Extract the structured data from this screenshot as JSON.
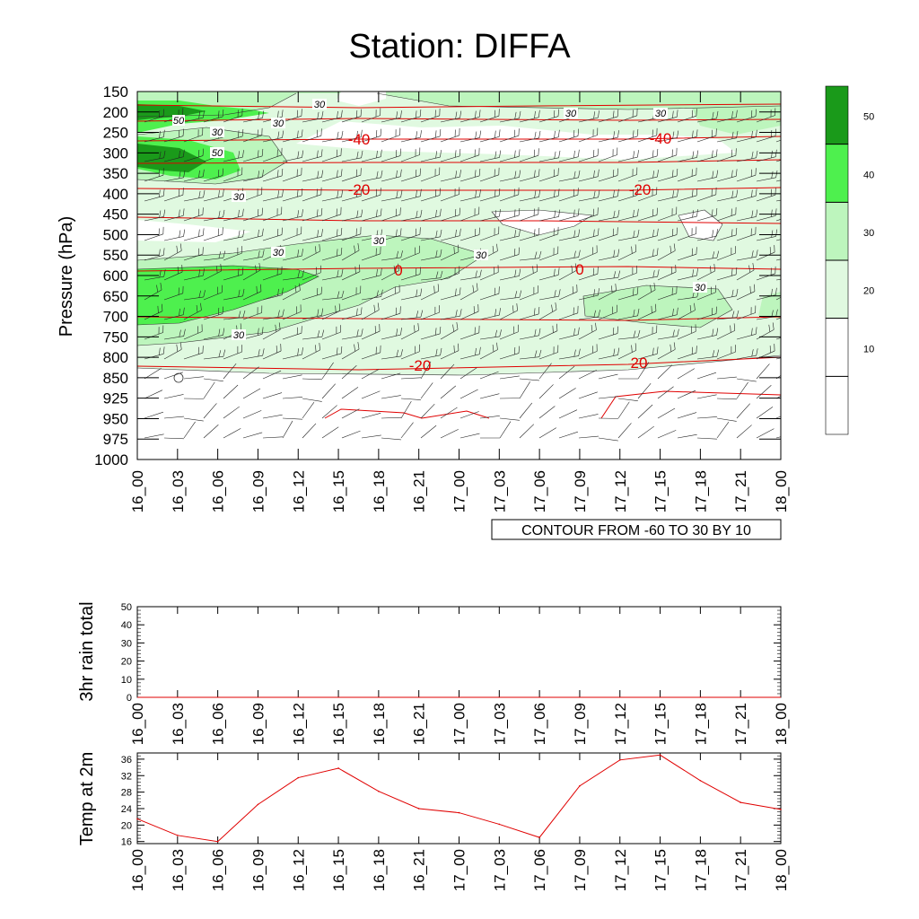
{
  "title": "Station: DIFFA",
  "cross_section": {
    "ylabel": "Pressure (hPa)",
    "note": "CONTOUR FROM -60 TO 30 BY 10",
    "temp_labels": [
      "-40",
      "-40",
      "-20",
      "-20",
      "0",
      "0",
      "-20",
      "20"
    ],
    "rh_labels": [
      "50",
      "30",
      "30",
      "50",
      "30",
      "30",
      "30",
      "30",
      "30",
      "30",
      "30",
      "30",
      "30"
    ],
    "colorbar_labels": [
      "50",
      "40",
      "30",
      "20",
      "10"
    ],
    "colorbar_colors": [
      "#1a9a1a",
      "#4ef04e",
      "#bdf5bd",
      "#e0f9e0",
      "#ffffff",
      "#ffffff"
    ]
  },
  "chart_data": [
    {
      "type": "heatmap",
      "title": "Station: DIFFA",
      "ylabel": "Pressure (hPa)",
      "x": [
        "16_00",
        "16_03",
        "16_06",
        "16_09",
        "16_12",
        "16_15",
        "16_18",
        "16_21",
        "17_00",
        "17_03",
        "17_06",
        "17_09",
        "17_12",
        "17_15",
        "17_18",
        "17_21",
        "18_00"
      ],
      "y": [
        "150",
        "200",
        "250",
        "300",
        "350",
        "400",
        "450",
        "500",
        "550",
        "600",
        "650",
        "700",
        "750",
        "800",
        "850",
        "925",
        "950",
        "975",
        "1000"
      ],
      "contour_range": [
        -60,
        30
      ],
      "contour_interval": 10,
      "colorbar_ticks": [
        50,
        40,
        30,
        20,
        10
      ]
    },
    {
      "type": "line",
      "ylabel": "3hr rain total",
      "x": [
        "16_00",
        "16_03",
        "16_06",
        "16_09",
        "16_12",
        "16_15",
        "16_18",
        "16_21",
        "17_00",
        "17_03",
        "17_06",
        "17_09",
        "17_12",
        "17_15",
        "17_18",
        "17_21",
        "18_00"
      ],
      "yticks": [
        "0",
        "10",
        "20",
        "30",
        "40",
        "50"
      ],
      "ylim": [
        0,
        50
      ],
      "values": [
        0,
        0,
        0,
        0,
        0,
        0,
        0,
        0,
        0,
        0,
        0,
        0,
        0,
        0,
        0,
        0,
        0
      ]
    },
    {
      "type": "line",
      "ylabel": "Temp at 2m",
      "x": [
        "16_00",
        "16_03",
        "16_06",
        "16_09",
        "16_12",
        "16_15",
        "16_18",
        "16_21",
        "17_00",
        "17_03",
        "17_06",
        "17_09",
        "17_12",
        "17_15",
        "17_18",
        "17_21",
        "18_00"
      ],
      "yticks": [
        "16",
        "20",
        "24",
        "28",
        "32",
        "36"
      ],
      "ylim": [
        15.5,
        37.5
      ],
      "values": [
        21.5,
        17.5,
        16,
        25,
        31.5,
        33.8,
        28.2,
        24,
        23,
        20.2,
        17,
        29.5,
        35.8,
        37,
        30.8,
        25.5,
        23.8
      ],
      "color": "#e00000"
    }
  ]
}
